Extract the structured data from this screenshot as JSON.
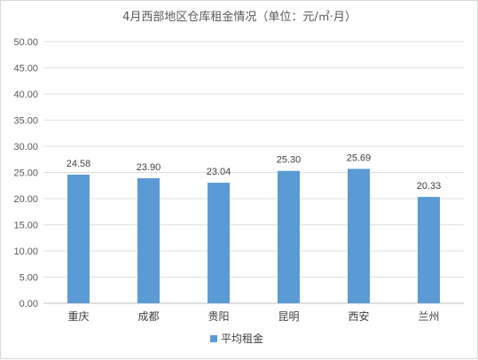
{
  "chart_data": {
    "type": "bar",
    "title": "4月西部地区仓库租金情况（单位：元/㎡·月）",
    "categories": [
      "重庆",
      "成都",
      "贵阳",
      "昆明",
      "西安",
      "兰州"
    ],
    "series": [
      {
        "name": "平均租金",
        "values": [
          24.58,
          23.9,
          23.04,
          25.3,
          25.69,
          20.33
        ],
        "color": "#5b9bd5"
      }
    ],
    "data_labels": [
      "24.58",
      "23.90",
      "23.04",
      "25.30",
      "25.69",
      "20.33"
    ],
    "ylim": [
      0,
      50
    ],
    "y_ticks": [
      "0.00",
      "5.00",
      "10.00",
      "15.00",
      "20.00",
      "25.00",
      "30.00",
      "35.00",
      "40.00",
      "45.00",
      "50.00"
    ],
    "grid": true,
    "legend": "bottom",
    "xlabel": "",
    "ylabel": ""
  }
}
